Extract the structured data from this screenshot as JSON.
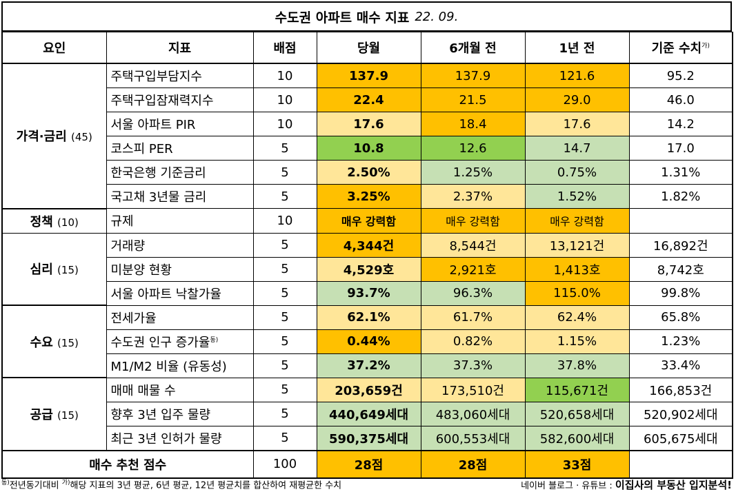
{
  "title": {
    "main": "수도권 아파트 매수 지표",
    "date": "22. 09."
  },
  "headers": {
    "factor": "요인",
    "indicator": "지표",
    "score": "배점",
    "current": "당월",
    "six_months": "6개월 전",
    "one_year": "1년 전",
    "baseline": "기준 수치",
    "baseline_sup": "가)"
  },
  "groups": [
    {
      "name": "가격·금리",
      "weight": "(45)",
      "rows": [
        {
          "indicator": "주택구입부담지수",
          "score": "10",
          "current": "137.9",
          "six": "137.9",
          "year": "121.6",
          "base": "95.2"
        },
        {
          "indicator": "주택구입잠재력지수",
          "score": "10",
          "current": "22.4",
          "six": "21.5",
          "year": "29.0",
          "base": "46.0"
        },
        {
          "indicator": "서울 아파트 PIR",
          "score": "10",
          "current": "17.6",
          "six": "18.4",
          "year": "17.6",
          "base": "14.2"
        },
        {
          "indicator": "코스피 PER",
          "score": "5",
          "current": "10.8",
          "six": "12.6",
          "year": "14.7",
          "base": "17.0"
        },
        {
          "indicator": "한국은행 기준금리",
          "score": "5",
          "current": "2.50%",
          "six": "1.25%",
          "year": "0.75%",
          "base": "1.31%"
        },
        {
          "indicator": "국고채 3년물 금리",
          "score": "5",
          "current": "3.25%",
          "six": "2.37%",
          "year": "1.52%",
          "base": "1.82%"
        }
      ]
    },
    {
      "name": "정책",
      "weight": "(10)",
      "rows": [
        {
          "indicator": "규제",
          "score": "10",
          "current": "매우 강력함",
          "six": "매우 강력함",
          "year": "매우 강력함",
          "base": ""
        }
      ]
    },
    {
      "name": "심리",
      "weight": "(15)",
      "rows": [
        {
          "indicator": "거래량",
          "score": "5",
          "current": "4,344건",
          "six": "8,544건",
          "year": "13,121건",
          "base": "16,892건"
        },
        {
          "indicator": "미분양 현황",
          "score": "5",
          "current": "4,529호",
          "six": "2,921호",
          "year": "1,413호",
          "base": "8,742호"
        },
        {
          "indicator": "서울 아파트 낙찰가율",
          "score": "5",
          "current": "93.7%",
          "six": "96.3%",
          "year": "115.0%",
          "base": "99.8%"
        }
      ]
    },
    {
      "name": "수요",
      "weight": "(15)",
      "rows": [
        {
          "indicator": "전세가율",
          "score": "5",
          "current": "62.1%",
          "six": "61.7%",
          "year": "62.4%",
          "base": "65.8%"
        },
        {
          "indicator": "수도권 인구 증가율",
          "indicator_sup": "동)",
          "score": "5",
          "current": "0.44%",
          "six": "0.82%",
          "year": "1.15%",
          "base": "1.23%"
        },
        {
          "indicator": "M1/M2 비율 (유동성)",
          "score": "5",
          "current": "37.2%",
          "six": "37.3%",
          "year": "37.8%",
          "base": "33.4%"
        }
      ]
    },
    {
      "name": "공급",
      "weight": "(15)",
      "rows": [
        {
          "indicator": "매매 매물 수",
          "score": "5",
          "current": "203,659건",
          "six": "173,510건",
          "year": "115,671건",
          "base": "166,853건"
        },
        {
          "indicator": "향후 3년 입주 물량",
          "score": "5",
          "current": "440,649세대",
          "six": "483,060세대",
          "year": "520,658세대",
          "base": "520,902세대"
        },
        {
          "indicator": "최근 3년 인허가 물량",
          "score": "5",
          "current": "590,375세대",
          "six": "600,553세대",
          "year": "582,600세대",
          "base": "605,675세대"
        }
      ]
    }
  ],
  "total": {
    "label": "매수 추천 점수",
    "score": "100",
    "current": "28점",
    "six": "28점",
    "year": "33점",
    "base": ""
  },
  "footer": {
    "note_sup1": "동)",
    "note1": "전년동기대비",
    "note_sup2": "가)",
    "note2": "해당 지표의 3년 평균, 6년 평균, 12년 평균치를 합산하여 재평균한 수치",
    "credit": "네이버 블로그 · 유튜브 :",
    "brand": "이집사의 부동산 입지분석!"
  },
  "colors": {
    "orange": "#ffc000",
    "light": "#ffe699",
    "green": "#c6e0b4",
    "bright_green": "#92d050"
  }
}
